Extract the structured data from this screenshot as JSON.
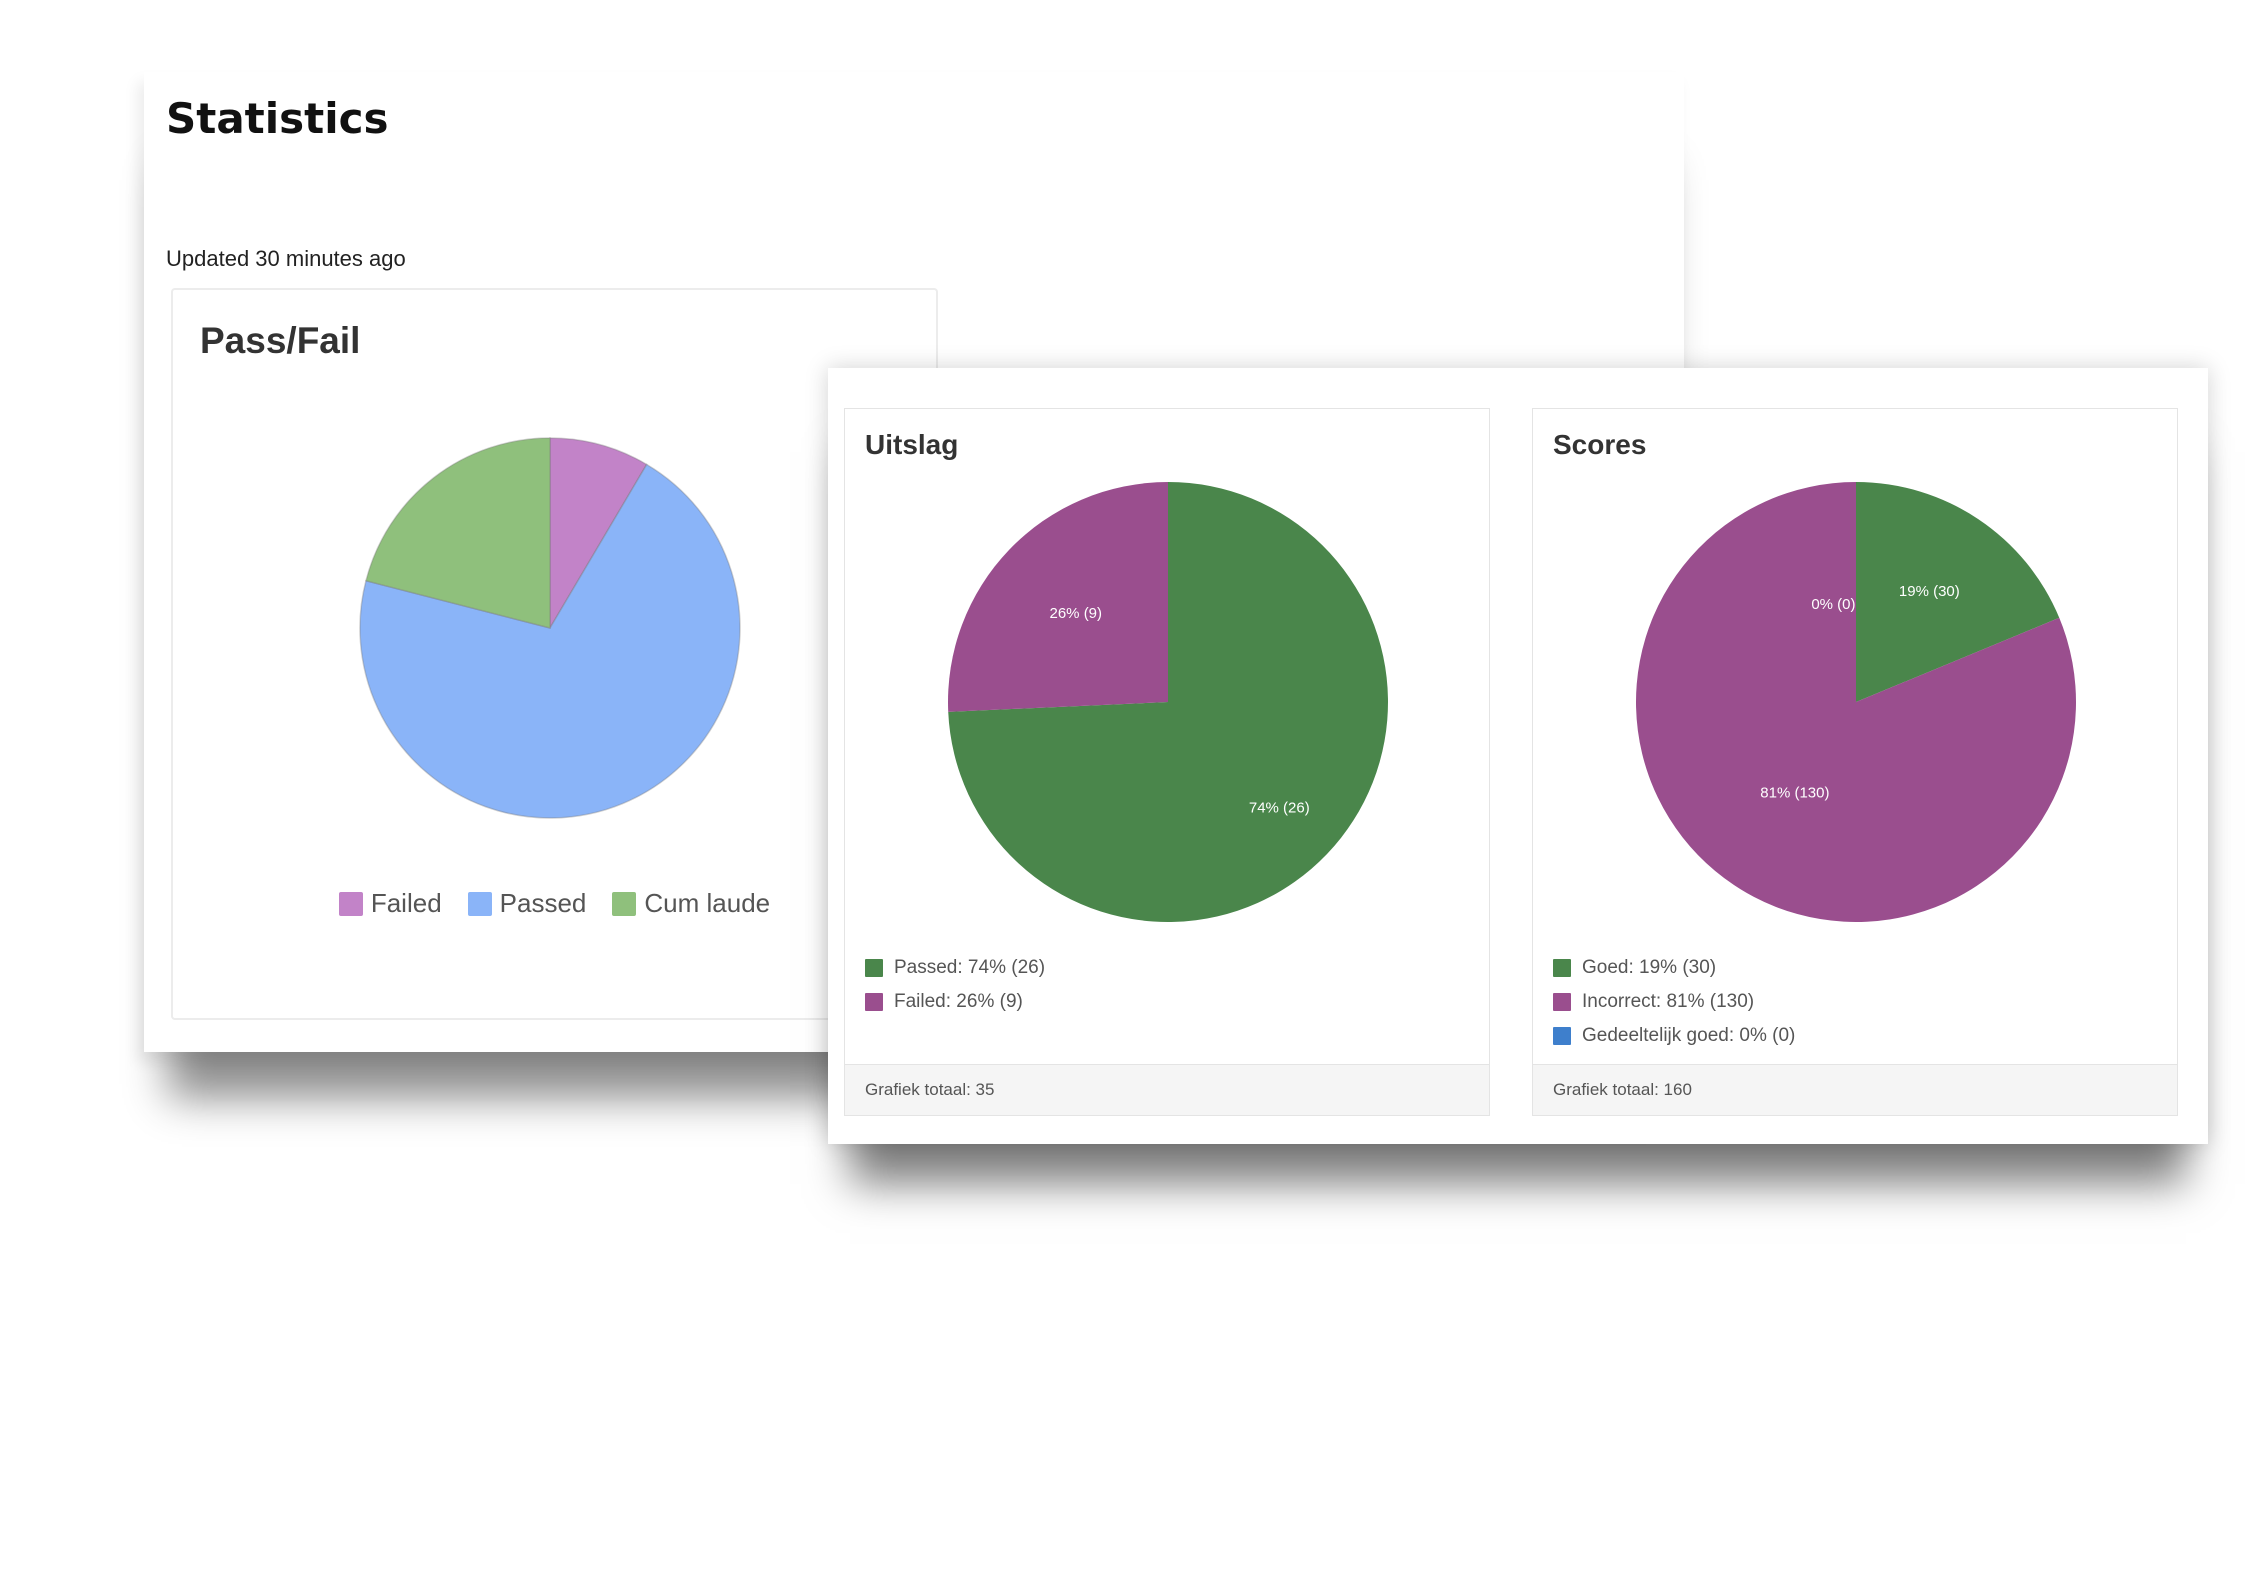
{
  "page": {
    "title": "Statistics",
    "updated": "Updated 30 minutes ago"
  },
  "chart_data": [
    {
      "type": "pie",
      "title": "Pass/Fail",
      "categories": [
        "Failed",
        "Passed",
        "Cum laude"
      ],
      "values": [
        8.5,
        70.5,
        21
      ],
      "colors": [
        "#c283c8",
        "#8ab4f8",
        "#8fc07c"
      ],
      "legend_position": "bottom"
    },
    {
      "type": "pie",
      "title": "Uitslag",
      "categories": [
        "Passed",
        "Failed"
      ],
      "values": [
        26,
        9
      ],
      "slice_labels": [
        "74% (26)",
        "26% (9)"
      ],
      "legend_labels": [
        "Passed: 74% (26)",
        "Failed: 26% (9)"
      ],
      "colors": [
        "#4a864b",
        "#9a4e8e"
      ],
      "legend_position": "bottom-left",
      "footer": "Grafiek totaal: 35"
    },
    {
      "type": "pie",
      "title": "Scores",
      "categories": [
        "Goed",
        "Incorrect",
        "Gedeeltelijk goed"
      ],
      "values": [
        30,
        130,
        0
      ],
      "slice_labels": [
        "19% (30)",
        "81% (130)",
        "0% (0)"
      ],
      "legend_labels": [
        "Goed: 19% (30)",
        "Incorrect: 81% (130)",
        "Gedeeltelijk goed: 0% (0)"
      ],
      "colors": [
        "#4a864b",
        "#9a4e8e",
        "#3e7fcc"
      ],
      "legend_position": "bottom-left",
      "footer": "Grafiek totaal: 160"
    }
  ]
}
